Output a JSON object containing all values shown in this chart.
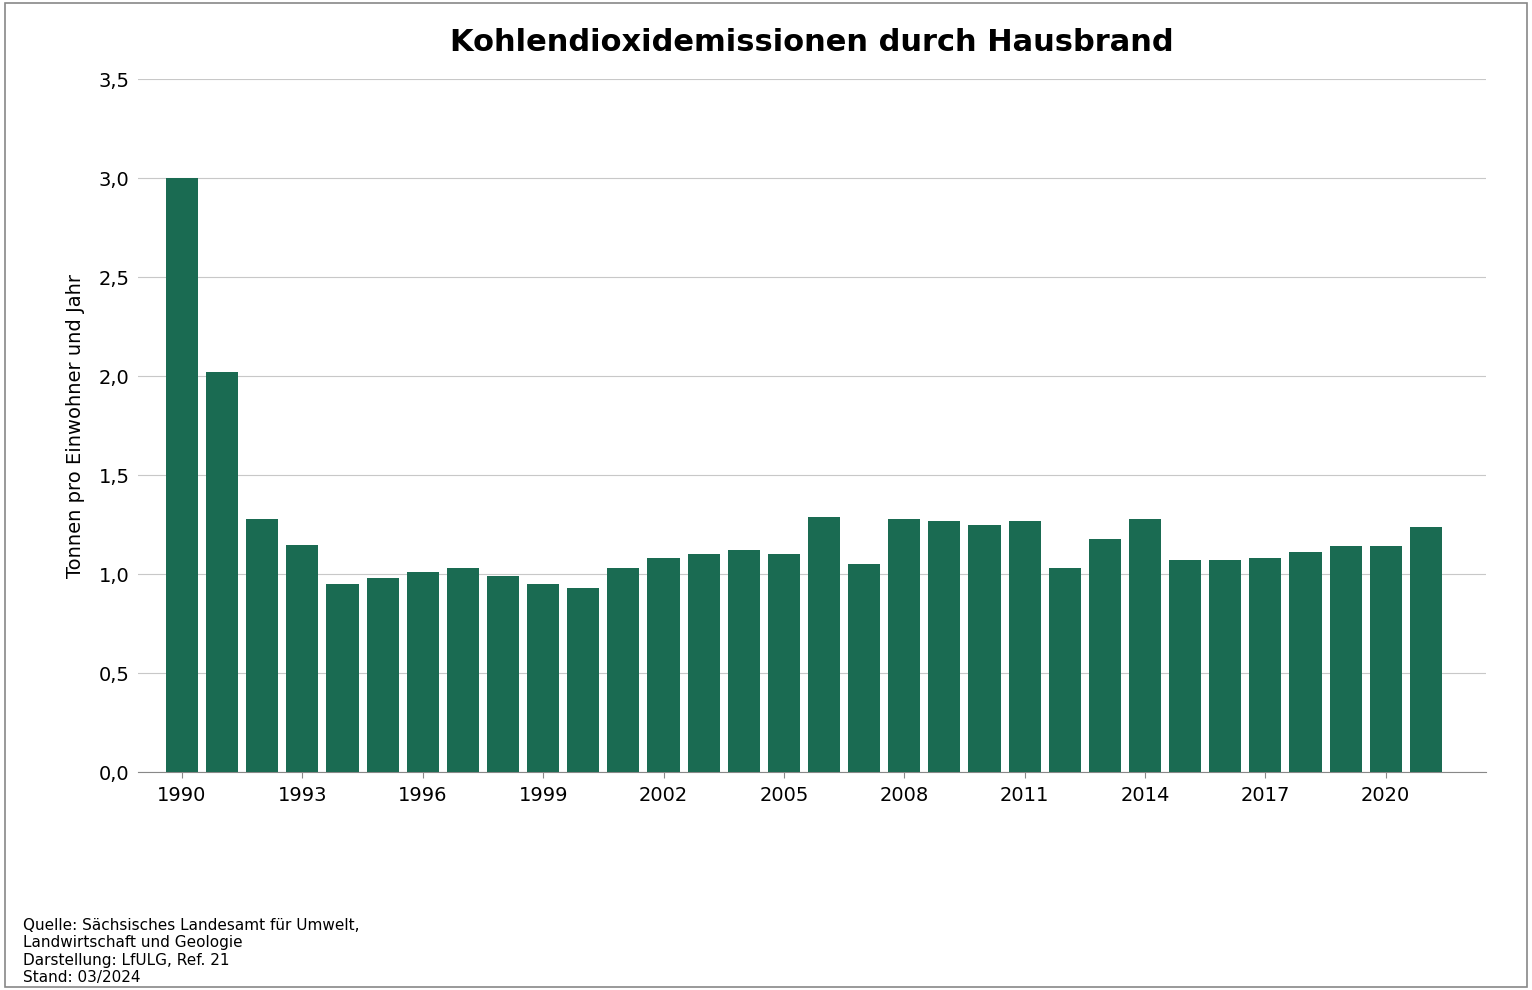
{
  "title": "Kohlendioxidemissionen durch Hausbrand",
  "ylabel": "Tonnen pro Einwohner und Jahr",
  "bar_color": "#1a6b52",
  "years": [
    1990,
    1991,
    1992,
    1993,
    1994,
    1995,
    1996,
    1997,
    1998,
    1999,
    2000,
    2001,
    2002,
    2003,
    2004,
    2005,
    2006,
    2007,
    2008,
    2009,
    2010,
    2011,
    2012,
    2013,
    2014,
    2015,
    2016,
    2017,
    2018,
    2019,
    2020,
    2021
  ],
  "values": [
    3.0,
    2.02,
    1.28,
    1.15,
    0.95,
    0.98,
    1.01,
    1.03,
    0.99,
    0.95,
    0.93,
    1.03,
    1.08,
    1.1,
    1.12,
    1.1,
    1.29,
    1.05,
    1.28,
    1.27,
    1.25,
    1.27,
    1.03,
    1.18,
    1.28,
    1.07,
    1.07,
    1.08,
    1.11,
    1.14,
    1.14,
    1.24
  ],
  "ylim": [
    0,
    3.5
  ],
  "yticks": [
    0.0,
    0.5,
    1.0,
    1.5,
    2.0,
    2.5,
    3.0,
    3.5
  ],
  "ytick_labels": [
    "0,0",
    "0,5",
    "1,0",
    "1,5",
    "2,0",
    "2,5",
    "3,0",
    "3,5"
  ],
  "xtick_years": [
    1990,
    1993,
    1996,
    1999,
    2002,
    2005,
    2008,
    2011,
    2014,
    2017,
    2020
  ],
  "source_text": "Quelle: Sächsisches Landesamt für Umwelt,\nLandwirtschaft und Geologie\nDarstellung: LfULG, Ref. 21\nStand: 03/2024",
  "background_color": "#ffffff",
  "grid_color": "#c8c8c8",
  "border_color": "#aaaaaa",
  "title_fontsize": 22,
  "label_fontsize": 14,
  "tick_fontsize": 14,
  "source_fontsize": 11,
  "bar_width": 0.8,
  "xlim_left": 1988.9,
  "xlim_right": 2022.5
}
